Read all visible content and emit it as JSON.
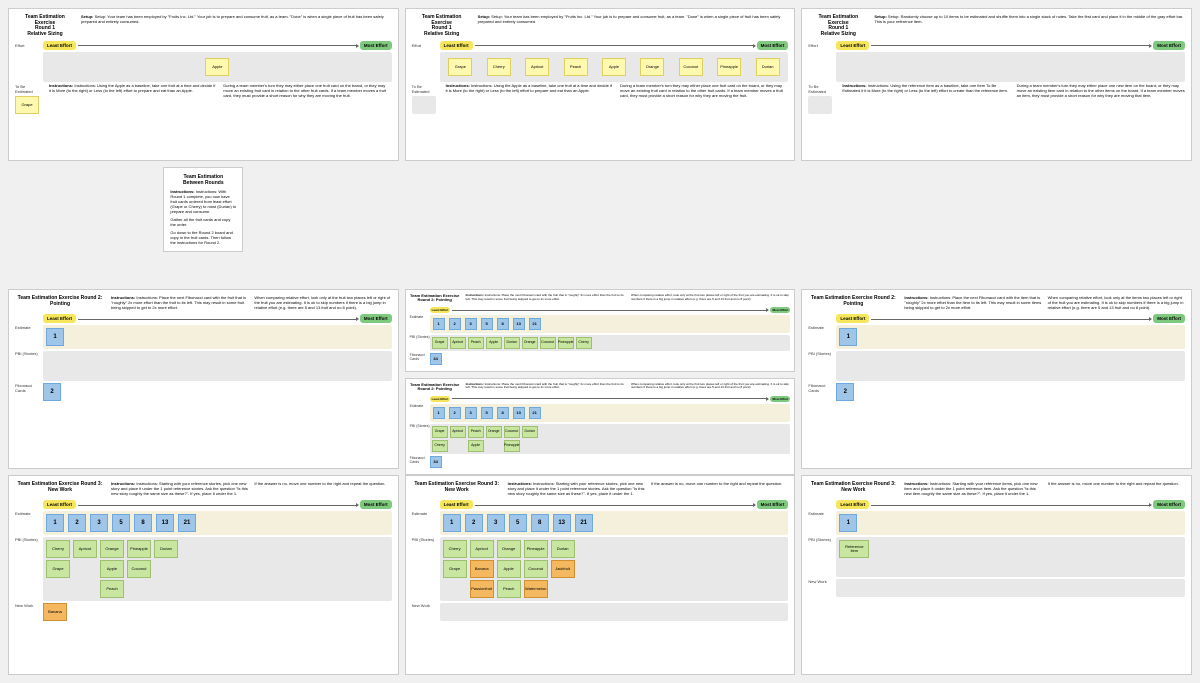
{
  "common": {
    "least_effort": "Least Effort",
    "most_effort": "Most Effort",
    "effort_label": "Effort",
    "tobe_label": "To Be Estimated",
    "estimate_label": "Estimate",
    "pbi_label": "PBI (Stories)",
    "fib_label": "Fibonacci Cards",
    "newwork_label": "New Work"
  },
  "round1": {
    "title": "Team Estimation Exercise\nRound 1\nRelative Sizing",
    "setup": "Setup: Your team has been employed by \"Fruits Inc. Ltd.\" Your job is to prepare and consume fruit, as a team. \"Done\" is when a single piece of fruit has been safely prepared and entirely consumed.",
    "instr": "Instructions: Using the Apple as a baseline, take one fruit at a time and decide if it is More (to the right) or Less (to the left) effort to prepare and eat than an Apple.",
    "tip": "During a team member's turn they may either place one fruit card on the board, or they may move an existing fruit card in relation to the other fruit cards. If a team member moves a fruit card, they must provide a short reason for why they are moving the fruit."
  },
  "r1_left": {
    "fruit": "Apple",
    "pending": "Grape"
  },
  "r1_mid": {
    "fruits": [
      "Grape",
      "Cherry",
      "Apricot",
      "Peach",
      "Apple",
      "Orange",
      "Coconut",
      "Pineapple",
      "Durian"
    ]
  },
  "r1_right": {
    "setup": "Setup: Randomly choose up to 10 items to be estimated and shuffle them into a single stack of notes. Take the first card and place it in the middle of the gray effort bar. This is your reference item.",
    "instr": "Instructions: Using the reference item as a baseline, take one Item To Be Estimated if it is More (to the right) or Less (to the left) effort to create than the reference item.",
    "tip": "During a team member's turn they may either place one new item on the board, or they may move an existing item card in relation to the other items on the board. If a team member moves an item, they must provide a short reason for why they are moving that item."
  },
  "between": {
    "title": "Team Estimation\nBetween Rounds",
    "instr": "Instructions: With Round 1 complete, you now have fruit cards ordered from least effort (Grape or Cherry) to most (Durian) to prepare and consume.",
    "line2": "Gather all the fruit cards and copy the order.",
    "line3": "Go down to the Round 2 board and copy in the fruit cards. Then follow the instructions for Round 2."
  },
  "round2": {
    "title": "Team Estimation Exercise Round 2: Pointing",
    "instr": "Instructions: Place the next Fibonacci card with the fruit that is \"roughly\" 2x more effort than the fruit to its left. This may result in some fruit being skipped to get to 2x more effort.",
    "tip": "When comparing relative effort, look only at the fruit two places left or right of the fruit you are estimating. It is ok to skip numbers if there is a big jump in relative effort (e.g. there are 5 and 13 fruit and no 8 point)."
  },
  "r2_left": {
    "card1": "1",
    "card2": "2"
  },
  "r2_mid_a": {
    "cards": [
      "1",
      "2",
      "3",
      "5",
      "8",
      "13",
      "21"
    ],
    "fruits": [
      "Grape",
      "Apricot",
      "Peach",
      "Apple",
      "Durian",
      "Orange",
      "Coconut",
      "Pineapple",
      "Cherry"
    ],
    "pending": "34"
  },
  "r2_mid_b": {
    "cards": [
      "1",
      "2",
      "3",
      "5",
      "8",
      "13",
      "21"
    ],
    "col1": [
      "Grape",
      "Cherry"
    ],
    "col2": [
      "Apricot"
    ],
    "col3": [
      "Peach",
      "Apple"
    ],
    "col4": [
      "Orange"
    ],
    "col5": [
      "Coconut",
      "Pineapple"
    ],
    "col6": [
      "Durian"
    ],
    "pending": "34"
  },
  "r2_right": {
    "instr": "Instructions: Place the next Fibonacci card with the item that is \"roughly\" 2x more effort than the item to its left. This may result in some items being skipped to get to 2x more effort.",
    "tip": "When comparing relative effort, look only at the items two places left or right of the fruit you are estimating. It is ok to skip numbers if there is a big jump in relative effort (e.g. there are 5 and 13 fruit and no 8 point)."
  },
  "round3": {
    "title": "Team Estimation Exercise Round 3: New Work",
    "instr": "Instructions: Starting with your reference stories, pick one new story and place it under the 1 point reference stories. Ask the question \"Is this new story roughly the same size as these?\". If yes, place it under the 1.",
    "tip": "If the answer is no, move one number to the right and repeat the question."
  },
  "r3_left": {
    "cards": [
      "1",
      "2",
      "3",
      "5",
      "8",
      "13",
      "21"
    ],
    "col1": [
      "Cherry",
      "Grape"
    ],
    "col2": [
      "Apricot"
    ],
    "col3": [
      "Orange",
      "Apple",
      "Peach"
    ],
    "col4": [
      "Pineapple",
      "Coconut"
    ],
    "col5": [
      "Durian"
    ],
    "new": "Banana"
  },
  "r3_mid": {
    "cards": [
      "1",
      "2",
      "3",
      "5",
      "8",
      "13",
      "21"
    ],
    "col1": [
      "Cherry",
      "Grape"
    ],
    "col2": [
      "Apricot",
      "Banana",
      "Passionfruit"
    ],
    "col3": [
      "Orange",
      "Apple",
      "Peach"
    ],
    "col4": [
      "Pineapple",
      "Coconut",
      "Watermelon"
    ],
    "col5": [
      "Durian",
      "Jackfruit"
    ]
  },
  "r3_right": {
    "instr": "Instructions: Starting with your reference items, pick one new item and place it under the 1 point reference item. Ask the question \"Is this new item roughly the same size as these?\". If yes, place it under the 1.",
    "ref": "Reference Item"
  },
  "colors": {
    "yellow_note": "#fff9b0",
    "green_note": "#c8e6a0",
    "orange_note": "#f4b860",
    "blue_card": "#9fc5e8",
    "gray_bg": "#e8e8e8",
    "cream": "#f5f0dc",
    "bubble_y": "#f5e65c",
    "bubble_g": "#7fc97f"
  }
}
